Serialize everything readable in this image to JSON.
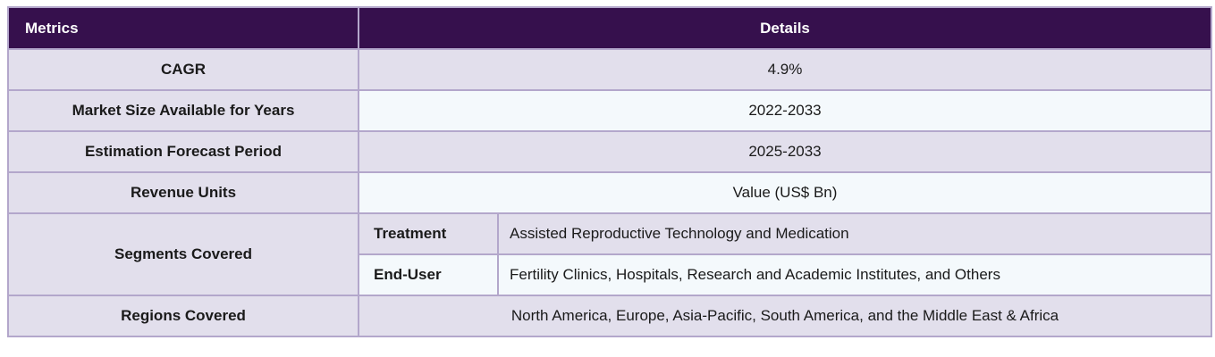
{
  "header": {
    "metrics": "Metrics",
    "details": "Details"
  },
  "rows": [
    {
      "metric": "CAGR",
      "value": "4.9%"
    },
    {
      "metric": "Market Size Available for Years",
      "value": "2022-2033"
    },
    {
      "metric": "Estimation Forecast Period",
      "value": "2025-2033"
    },
    {
      "metric": "Revenue Units",
      "value": "Value (US$ Bn)"
    }
  ],
  "segments": {
    "metric": "Segments Covered",
    "items": [
      {
        "label": "Treatment",
        "value": "Assisted Reproductive Technology and Medication"
      },
      {
        "label": "End-User",
        "value": "Fertility Clinics, Hospitals, Research and Academic Institutes, and Others"
      }
    ]
  },
  "regions": {
    "metric": "Regions Covered",
    "value": "North America, Europe, Asia-Pacific, South America, and the Middle East & Africa"
  },
  "colors": {
    "header_bg": "#36104d",
    "row_shade": "#e2dfec",
    "row_light": "#f4f9fc",
    "border": "#b3a7cb"
  }
}
